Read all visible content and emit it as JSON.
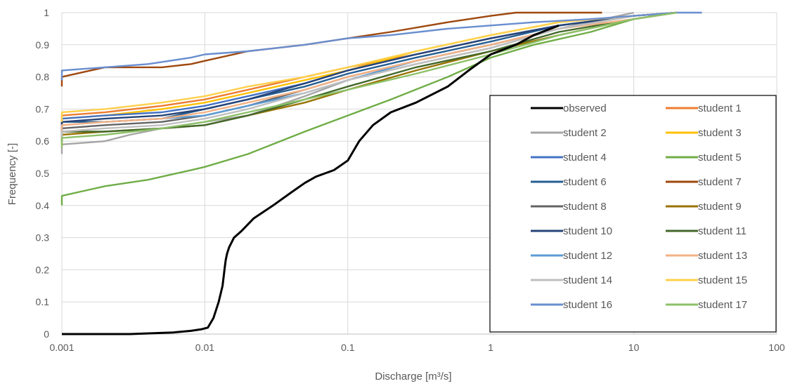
{
  "chart_data": {
    "type": "line",
    "title": "",
    "xlabel": "Discharge [m³/s]",
    "ylabel": "Frequency [-]",
    "xscale": "log",
    "xlim": [
      0.001,
      100
    ],
    "ylim": [
      0,
      1
    ],
    "grid": true,
    "legend_position": "bottom-right",
    "x_ticks": [
      "0.001",
      "0.01",
      "0.1",
      "1",
      "10",
      "100"
    ],
    "y_ticks": [
      "0",
      "0.1",
      "0.2",
      "0.3",
      "0.4",
      "0.5",
      "0.6",
      "0.7",
      "0.8",
      "0.9",
      "1"
    ],
    "series": [
      {
        "name": "observed",
        "color": "#000000",
        "x": [
          0.001,
          0.003,
          0.006,
          0.008,
          0.0095,
          0.0105,
          0.0115,
          0.0125,
          0.0133,
          0.0138,
          0.014,
          0.0143,
          0.0148,
          0.016,
          0.018,
          0.022,
          0.03,
          0.04,
          0.05,
          0.06,
          0.08,
          0.1,
          0.12,
          0.15,
          0.2,
          0.3,
          0.5,
          0.7,
          1.0,
          1.5,
          2.0,
          3.0
        ],
        "y": [
          0,
          0,
          0.005,
          0.01,
          0.015,
          0.02,
          0.05,
          0.1,
          0.15,
          0.21,
          0.23,
          0.25,
          0.27,
          0.3,
          0.32,
          0.36,
          0.4,
          0.44,
          0.47,
          0.49,
          0.51,
          0.54,
          0.6,
          0.65,
          0.69,
          0.72,
          0.77,
          0.82,
          0.87,
          0.9,
          0.93,
          0.96
        ]
      },
      {
        "name": "student 1",
        "color": "#ED7D31",
        "x": [
          0.001,
          0.002,
          0.005,
          0.01,
          0.02,
          0.05,
          0.1,
          0.3,
          1,
          3,
          10,
          20
        ],
        "y": [
          0.68,
          0.69,
          0.71,
          0.73,
          0.76,
          0.8,
          0.83,
          0.87,
          0.92,
          0.96,
          0.99,
          1
        ]
      },
      {
        "name": "student 2",
        "color": "#A5A5A5",
        "x": [
          0.001,
          0.002,
          0.003,
          0.005,
          0.01,
          0.02,
          0.05,
          0.1,
          0.3,
          1,
          3,
          10
        ],
        "y": [
          0.59,
          0.6,
          0.62,
          0.64,
          0.66,
          0.68,
          0.74,
          0.79,
          0.84,
          0.89,
          0.95,
          1
        ]
      },
      {
        "name": "student 3",
        "color": "#FFC000",
        "x": [
          0.001,
          0.002,
          0.005,
          0.01,
          0.02,
          0.05,
          0.1,
          0.3,
          1,
          3,
          10,
          20
        ],
        "y": [
          0.67,
          0.68,
          0.7,
          0.72,
          0.75,
          0.79,
          0.82,
          0.88,
          0.93,
          0.97,
          0.99,
          1
        ]
      },
      {
        "name": "student 4",
        "color": "#4472C4",
        "x": [
          0.001,
          0.002,
          0.005,
          0.01,
          0.02,
          0.05,
          0.1,
          0.3,
          1,
          3,
          10,
          20
        ],
        "y": [
          0.67,
          0.68,
          0.69,
          0.71,
          0.74,
          0.78,
          0.82,
          0.87,
          0.92,
          0.96,
          0.99,
          1
        ]
      },
      {
        "name": "student 5",
        "color": "#70AD47",
        "x": [
          0.001,
          0.002,
          0.004,
          0.008,
          0.01,
          0.02,
          0.05,
          0.1,
          0.2,
          0.5,
          1,
          2,
          5,
          10,
          20
        ],
        "y": [
          0.43,
          0.46,
          0.48,
          0.51,
          0.52,
          0.56,
          0.63,
          0.68,
          0.73,
          0.8,
          0.86,
          0.9,
          0.94,
          0.98,
          1
        ]
      },
      {
        "name": "student 6",
        "color": "#255E91",
        "x": [
          0.001,
          0.002,
          0.005,
          0.01,
          0.02,
          0.05,
          0.1,
          0.3,
          1,
          3,
          10,
          20
        ],
        "y": [
          0.66,
          0.66,
          0.67,
          0.7,
          0.73,
          0.77,
          0.81,
          0.86,
          0.91,
          0.96,
          0.99,
          1
        ]
      },
      {
        "name": "student 7",
        "color": "#9E480E",
        "x": [
          0.001,
          0.002,
          0.005,
          0.008,
          0.01,
          0.02,
          0.05,
          0.1,
          0.2,
          0.5,
          1,
          1.5,
          3,
          6
        ],
        "y": [
          0.8,
          0.83,
          0.83,
          0.84,
          0.85,
          0.88,
          0.9,
          0.92,
          0.94,
          0.97,
          0.99,
          1,
          1,
          1
        ]
      },
      {
        "name": "student 8",
        "color": "#636363",
        "x": [
          0.001,
          0.002,
          0.005,
          0.01,
          0.02,
          0.05,
          0.1,
          0.3,
          1,
          3,
          10,
          20
        ],
        "y": [
          0.64,
          0.65,
          0.66,
          0.68,
          0.71,
          0.76,
          0.8,
          0.85,
          0.9,
          0.95,
          0.99,
          1
        ]
      },
      {
        "name": "student 9",
        "color": "#997300",
        "x": [
          0.001,
          0.002,
          0.005,
          0.01,
          0.02,
          0.05,
          0.1,
          0.3,
          1,
          3,
          10,
          20
        ],
        "y": [
          0.62,
          0.63,
          0.64,
          0.65,
          0.68,
          0.72,
          0.76,
          0.82,
          0.88,
          0.93,
          0.98,
          1
        ]
      },
      {
        "name": "student 10",
        "color": "#264478",
        "x": [
          0.001,
          0.002,
          0.005,
          0.01,
          0.02,
          0.05,
          0.1,
          0.3,
          1,
          3,
          10,
          20
        ],
        "y": [
          0.66,
          0.67,
          0.68,
          0.7,
          0.73,
          0.78,
          0.82,
          0.87,
          0.92,
          0.96,
          0.99,
          1
        ]
      },
      {
        "name": "student 11",
        "color": "#43682B",
        "x": [
          0.001,
          0.002,
          0.005,
          0.01,
          0.02,
          0.05,
          0.1,
          0.3,
          1,
          3,
          10,
          20
        ],
        "y": [
          0.63,
          0.63,
          0.64,
          0.65,
          0.68,
          0.73,
          0.77,
          0.83,
          0.88,
          0.94,
          0.98,
          1
        ]
      },
      {
        "name": "student 12",
        "color": "#5B9BD5",
        "x": [
          0.001,
          0.002,
          0.005,
          0.01,
          0.02,
          0.05,
          0.1,
          0.3,
          1,
          3,
          10,
          20
        ],
        "y": [
          0.65,
          0.66,
          0.67,
          0.68,
          0.71,
          0.75,
          0.79,
          0.85,
          0.9,
          0.95,
          0.99,
          1
        ]
      },
      {
        "name": "student 13",
        "color": "#F4B183",
        "x": [
          0.001,
          0.002,
          0.005,
          0.01,
          0.02,
          0.05,
          0.1,
          0.3,
          1,
          3,
          10,
          20
        ],
        "y": [
          0.65,
          0.66,
          0.67,
          0.69,
          0.72,
          0.76,
          0.8,
          0.85,
          0.9,
          0.95,
          0.98,
          1
        ]
      },
      {
        "name": "student 14",
        "color": "#BFBFBF",
        "x": [
          0.001,
          0.002,
          0.005,
          0.01,
          0.02,
          0.05,
          0.1,
          0.3,
          1,
          3,
          10,
          20
        ],
        "y": [
          0.63,
          0.64,
          0.65,
          0.67,
          0.7,
          0.75,
          0.79,
          0.84,
          0.89,
          0.95,
          0.99,
          1
        ]
      },
      {
        "name": "student 15",
        "color": "#FFD04B",
        "x": [
          0.001,
          0.002,
          0.005,
          0.01,
          0.02,
          0.05,
          0.1,
          0.3,
          1,
          3,
          10,
          20
        ],
        "y": [
          0.69,
          0.7,
          0.72,
          0.74,
          0.77,
          0.8,
          0.83,
          0.88,
          0.93,
          0.97,
          0.99,
          1
        ]
      },
      {
        "name": "student 16",
        "color": "#698ED0",
        "x": [
          0.001,
          0.002,
          0.004,
          0.008,
          0.01,
          0.02,
          0.05,
          0.1,
          0.2,
          0.5,
          1,
          2,
          5,
          10,
          20,
          30
        ],
        "y": [
          0.82,
          0.83,
          0.84,
          0.86,
          0.87,
          0.88,
          0.9,
          0.92,
          0.93,
          0.95,
          0.96,
          0.97,
          0.98,
          0.99,
          1,
          1
        ]
      },
      {
        "name": "student 17",
        "color": "#8CC168",
        "x": [
          0.001,
          0.002,
          0.005,
          0.01,
          0.02,
          0.05,
          0.1,
          0.3,
          1,
          3,
          10,
          20
        ],
        "y": [
          0.61,
          0.62,
          0.64,
          0.66,
          0.69,
          0.73,
          0.76,
          0.81,
          0.87,
          0.93,
          0.98,
          1
        ]
      }
    ]
  }
}
